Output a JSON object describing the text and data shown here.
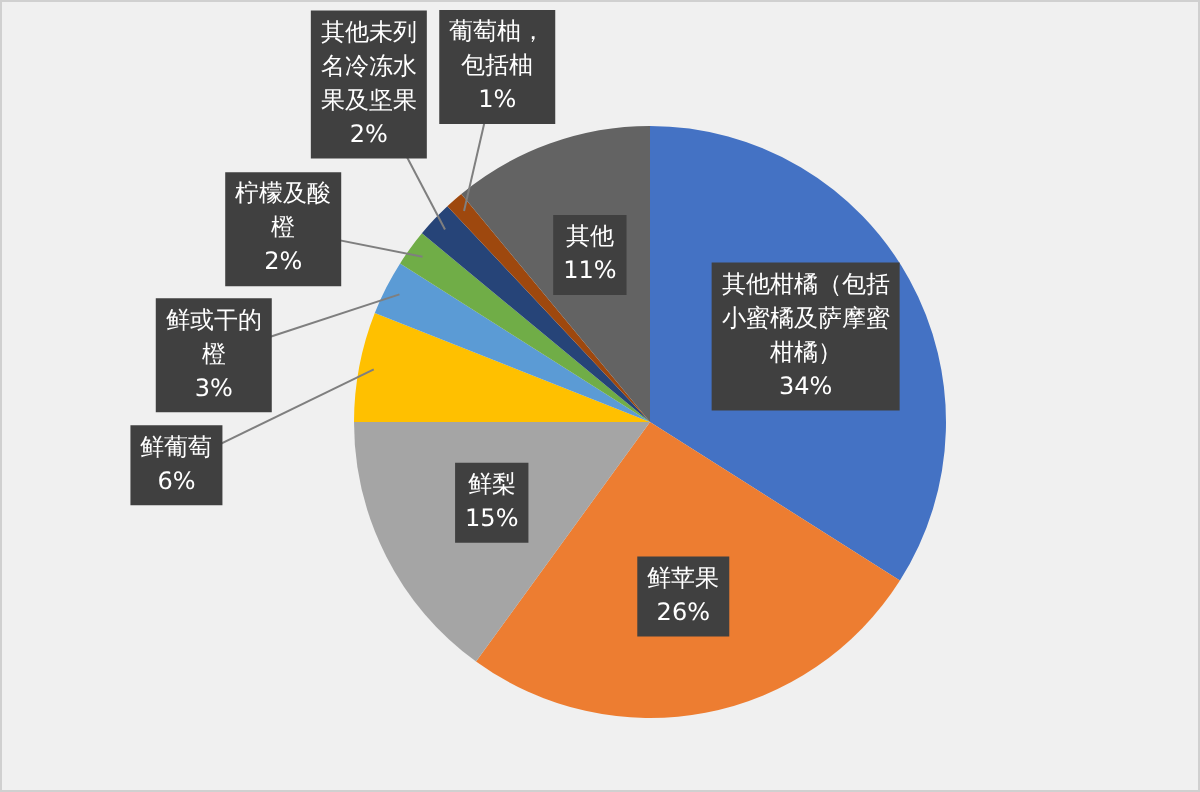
{
  "chart_data": {
    "type": "pie",
    "categories": [
      "其他柑橘（包括小蜜橘及萨摩蜜柑橘）",
      "鲜苹果",
      "鲜梨",
      "鲜葡萄",
      "鲜或干的橙",
      "柠檬及酸橙",
      "其他未列名冷冻水果及坚果",
      "葡萄柚，包括柚",
      "其他"
    ],
    "values": [
      34,
      26,
      15,
      6,
      3,
      2,
      2,
      1,
      11
    ],
    "colors": [
      "#4472c4",
      "#ed7d31",
      "#a5a5a5",
      "#ffc000",
      "#5b9bd5",
      "#70ad47",
      "#264478",
      "#9e480e",
      "#636363"
    ],
    "value_labels": [
      "34%",
      "26%",
      "15%",
      "6%",
      "3%",
      "2%",
      "2%",
      "1%",
      "11%"
    ],
    "legend": false
  }
}
